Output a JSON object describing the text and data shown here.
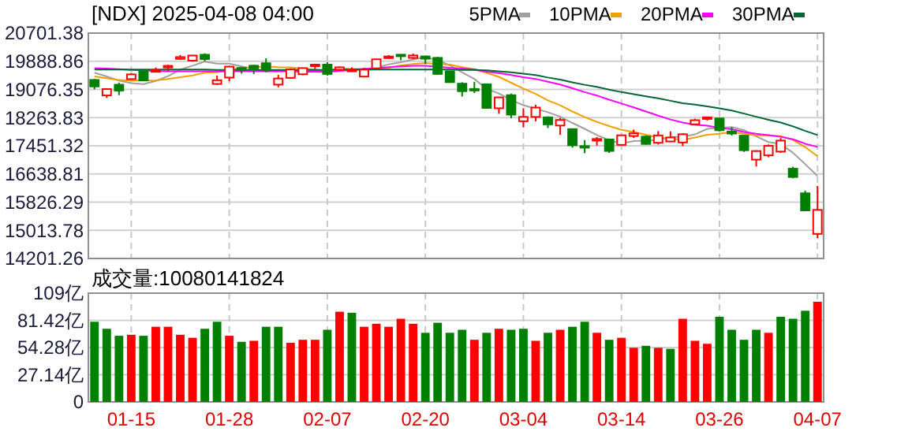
{
  "chart_data": [
    {
      "type": "candlestick",
      "title": "[NDX] 2025-04-08 04:00",
      "grid": true,
      "legend": "top right",
      "categories": [
        null,
        null,
        null,
        null,
        null,
        null,
        null,
        null,
        null,
        null,
        null,
        null,
        null,
        null,
        null,
        null,
        null,
        null,
        null,
        null,
        null,
        null,
        null,
        null,
        null,
        null,
        null,
        null,
        null,
        null,
        null,
        null,
        null,
        null,
        null,
        null,
        null,
        null,
        null,
        null,
        null,
        null,
        null,
        null,
        null,
        null,
        null,
        null,
        null,
        null,
        null,
        null,
        null,
        null,
        null,
        null,
        null,
        null,
        null,
        null
      ],
      "ylim": [
        14201.26,
        20701.38
      ],
      "yticks": [
        14201.26,
        15013.78,
        15826.29,
        16638.81,
        17451.32,
        18263.83,
        19076.35,
        19888.86,
        20701.38
      ],
      "ohlc": [
        [
          19350,
          19380,
          19080,
          19162
        ],
        [
          18903,
          19098,
          18832,
          19088
        ],
        [
          19212,
          19271,
          18914,
          19044
        ],
        [
          19375,
          19548,
          19365,
          19511
        ],
        [
          19590,
          19593,
          19317,
          19338
        ],
        [
          19610,
          19709,
          19571,
          19630
        ],
        [
          19710,
          19789,
          19601,
          19757
        ],
        [
          19958,
          20069,
          19935,
          20009
        ],
        [
          19906,
          20054,
          19876,
          20054
        ],
        [
          20077,
          20118,
          19889,
          19954
        ],
        [
          19235,
          19476,
          19204,
          19342
        ],
        [
          19418,
          19759,
          19314,
          19734
        ],
        [
          19697,
          19727,
          19533,
          19632
        ],
        [
          19762,
          19789,
          19523,
          19682
        ],
        [
          19832,
          19973,
          19577,
          19627
        ],
        [
          19215,
          19500,
          19141,
          19392
        ],
        [
          19410,
          19686,
          19390,
          19654
        ],
        [
          19515,
          19697,
          19488,
          19692
        ],
        [
          19752,
          19800,
          19668,
          19792
        ],
        [
          19792,
          19862,
          19476,
          19523
        ],
        [
          19647,
          19734,
          19627,
          19714
        ],
        [
          19600,
          19713,
          19588,
          19644
        ],
        [
          19447,
          19703,
          19425,
          19650
        ],
        [
          19685,
          19958,
          19660,
          19946
        ],
        [
          20019,
          20065,
          19960,
          20027
        ],
        [
          20079,
          20080,
          19918,
          20041
        ],
        [
          19987,
          20110,
          19948,
          20056
        ],
        [
          20029,
          20045,
          19808,
          19962
        ],
        [
          19987,
          20016,
          19497,
          19524
        ],
        [
          19600,
          19612,
          19264,
          19287
        ],
        [
          19243,
          19283,
          18871,
          19026
        ],
        [
          19091,
          19297,
          18974,
          19075
        ],
        [
          19225,
          19243,
          18524,
          18544
        ],
        [
          18533,
          18862,
          18373,
          18847
        ],
        [
          18911,
          18955,
          18248,
          18350
        ],
        [
          18160,
          18535,
          17984,
          18285
        ],
        [
          18284,
          18633,
          18158,
          18553
        ],
        [
          18271,
          18302,
          17964,
          18069
        ],
        [
          18035,
          18255,
          17768,
          18196
        ],
        [
          17932,
          17956,
          17397,
          17468
        ],
        [
          17443,
          17615,
          17238,
          17436
        ],
        [
          17600,
          17705,
          17457,
          17648
        ],
        [
          17634,
          17660,
          17247,
          17303
        ],
        [
          17478,
          17775,
          17455,
          17754
        ],
        [
          17733,
          17919,
          17678,
          17809
        ],
        [
          17716,
          17748,
          17487,
          17504
        ],
        [
          17537,
          17873,
          17487,
          17751
        ],
        [
          17576,
          17867,
          17557,
          17692
        ],
        [
          17547,
          17809,
          17442,
          17784
        ],
        [
          18071,
          18232,
          18068,
          18189
        ],
        [
          18228,
          18289,
          18181,
          18272
        ],
        [
          18241,
          18261,
          17864,
          17899
        ],
        [
          17862,
          17985,
          17749,
          17804
        ],
        [
          17744,
          17749,
          17277,
          17323
        ],
        [
          17052,
          17324,
          16854,
          17299
        ],
        [
          17175,
          17489,
          17121,
          17450
        ],
        [
          17283,
          17676,
          17250,
          17601
        ],
        [
          16790,
          16845,
          16514,
          16551
        ],
        [
          16081,
          16158,
          15575,
          15588
        ],
        [
          14910,
          16292,
          14784,
          15603
        ]
      ],
      "colors": [
        "#008000",
        "#ff0000",
        "#008000",
        "#ff0000",
        "#008000",
        "#ff0000",
        "#ff0000",
        "#ff0000",
        "#ff0000",
        "#008000",
        "#ff0000",
        "#ff0000",
        "#008000",
        "#008000",
        "#008000",
        "#ff0000",
        "#ff0000",
        "#ff0000",
        "#ff0000",
        "#008000",
        "#ff0000",
        "#ff0000",
        "#ff0000",
        "#ff0000",
        "#ff0000",
        "#008000",
        "#ff0000",
        "#008000",
        "#008000",
        "#008000",
        "#008000",
        "#008000",
        "#008000",
        "#ff0000",
        "#008000",
        "#ff0000",
        "#ff0000",
        "#008000",
        "#ff0000",
        "#008000",
        "#008000",
        "#ff0000",
        "#008000",
        "#ff0000",
        "#ff0000",
        "#008000",
        "#ff0000",
        "#ff0000",
        "#ff0000",
        "#ff0000",
        "#ff0000",
        "#008000",
        "#008000",
        "#008000",
        "#ff0000",
        "#ff0000",
        "#ff0000",
        "#008000",
        "#008000",
        "#ff0000"
      ],
      "series": [
        {
          "name": "5PMA",
          "type": "line",
          "color": "#a0a0a0",
          "values": [
            19560,
            19450,
            19330,
            19260,
            19230,
            19320,
            19460,
            19650,
            19760,
            19880,
            19820,
            19820,
            19740,
            19670,
            19600,
            19610,
            19600,
            19610,
            19630,
            19610,
            19680,
            19670,
            19670,
            19700,
            19800,
            19860,
            19940,
            20010,
            19920,
            19770,
            19570,
            19380,
            19090,
            18960,
            18770,
            18620,
            18520,
            18420,
            18290,
            18110,
            17940,
            17760,
            17610,
            17520,
            17590,
            17600,
            17620,
            17700,
            17710,
            17780,
            17940,
            17970,
            17990,
            17900,
            17720,
            17560,
            17500,
            17250,
            16920,
            16580
          ]
        },
        {
          "name": "10PMA",
          "type": "line",
          "color": "#f0a000",
          "values": [
            19450,
            19400,
            19350,
            19330,
            19330,
            19340,
            19380,
            19430,
            19480,
            19560,
            19570,
            19640,
            19700,
            19710,
            19740,
            19720,
            19710,
            19680,
            19650,
            19610,
            19640,
            19640,
            19640,
            19660,
            19700,
            19770,
            19810,
            19840,
            19810,
            19790,
            19720,
            19660,
            19550,
            19440,
            19270,
            19100,
            18950,
            18760,
            18620,
            18440,
            18280,
            18140,
            18020,
            17910,
            17850,
            17770,
            17690,
            17660,
            17620,
            17690,
            17770,
            17800,
            17850,
            17800,
            17750,
            17750,
            17730,
            17620,
            17410,
            17150
          ]
        },
        {
          "name": "20PMA",
          "type": "line",
          "color": "#ff00ff",
          "values": [
            19690,
            19680,
            19660,
            19640,
            19620,
            19610,
            19600,
            19600,
            19600,
            19600,
            19600,
            19600,
            19600,
            19600,
            19600,
            19600,
            19600,
            19590,
            19590,
            19580,
            19610,
            19640,
            19670,
            19690,
            19720,
            19740,
            19760,
            19760,
            19730,
            19700,
            19680,
            19650,
            19590,
            19550,
            19490,
            19430,
            19380,
            19300,
            19220,
            19110,
            19000,
            18900,
            18780,
            18670,
            18560,
            18440,
            18320,
            18210,
            18120,
            18060,
            18030,
            17970,
            17930,
            17850,
            17800,
            17760,
            17710,
            17640,
            17510,
            17420
          ]
        },
        {
          "name": "30PMA",
          "type": "line",
          "color": "#006633",
          "values": [
            19650,
            19650,
            19650,
            19650,
            19650,
            19650,
            19650,
            19650,
            19650,
            19650,
            19640,
            19640,
            19640,
            19640,
            19640,
            19640,
            19640,
            19640,
            19640,
            19640,
            19650,
            19650,
            19650,
            19650,
            19650,
            19650,
            19650,
            19650,
            19650,
            19650,
            19640,
            19640,
            19630,
            19600,
            19570,
            19530,
            19490,
            19420,
            19360,
            19280,
            19210,
            19150,
            19070,
            19000,
            18940,
            18880,
            18820,
            18750,
            18680,
            18640,
            18590,
            18530,
            18470,
            18380,
            18290,
            18200,
            18120,
            18010,
            17880,
            17760
          ]
        }
      ]
    },
    {
      "type": "bar",
      "title": "成交量:10080141824",
      "grid": true,
      "categories": [
        null,
        null,
        null,
        "01-15",
        null,
        null,
        null,
        null,
        null,
        null,
        null,
        "01-28",
        null,
        null,
        null,
        null,
        null,
        null,
        null,
        "02-07",
        null,
        null,
        null,
        null,
        null,
        null,
        null,
        "02-20",
        null,
        null,
        null,
        null,
        null,
        null,
        null,
        "03-04",
        null,
        null,
        null,
        null,
        null,
        null,
        null,
        "03-14",
        null,
        null,
        null,
        null,
        null,
        null,
        null,
        "03-26",
        null,
        null,
        null,
        null,
        null,
        null,
        null,
        "04-07"
      ],
      "ylim": [
        0,
        108.56
      ],
      "yticks": [
        0,
        {
          "value": 27.14,
          "label": "27.14亿"
        },
        {
          "value": 54.28,
          "label": "54.28亿"
        },
        {
          "value": 81.42,
          "label": "81.42亿"
        },
        {
          "value": 108.56,
          "label": "109亿"
        }
      ],
      "values": [
        80,
        73,
        66,
        67,
        66,
        75,
        75,
        67,
        64,
        73,
        80,
        66,
        60,
        61,
        75,
        75,
        59,
        62,
        62,
        72,
        90,
        89,
        75,
        78,
        75,
        83,
        78,
        69,
        79,
        69,
        72,
        62,
        69,
        73,
        72,
        73,
        61,
        69,
        72,
        75,
        80,
        69,
        62,
        64,
        54,
        56,
        54,
        53,
        83,
        61,
        58,
        85,
        72,
        62,
        72,
        69,
        85,
        83,
        91,
        100
      ],
      "colors": [
        "#008000",
        "#008000",
        "#008000",
        "#ff0000",
        "#008000",
        "#ff0000",
        "#ff0000",
        "#ff0000",
        "#ff0000",
        "#008000",
        "#008000",
        "#ff0000",
        "#008000",
        "#ff0000",
        "#008000",
        "#008000",
        "#ff0000",
        "#ff0000",
        "#ff0000",
        "#008000",
        "#ff0000",
        "#008000",
        "#ff0000",
        "#ff0000",
        "#ff0000",
        "#ff0000",
        "#ff0000",
        "#008000",
        "#008000",
        "#008000",
        "#008000",
        "#ff0000",
        "#008000",
        "#ff0000",
        "#008000",
        "#008000",
        "#ff0000",
        "#008000",
        "#ff0000",
        "#008000",
        "#008000",
        "#ff0000",
        "#008000",
        "#ff0000",
        "#ff0000",
        "#008000",
        "#ff0000",
        "#008000",
        "#ff0000",
        "#ff0000",
        "#ff0000",
        "#008000",
        "#008000",
        "#008000",
        "#008000",
        "#ff0000",
        "#008000",
        "#008000",
        "#008000",
        "#ff0000"
      ]
    }
  ]
}
